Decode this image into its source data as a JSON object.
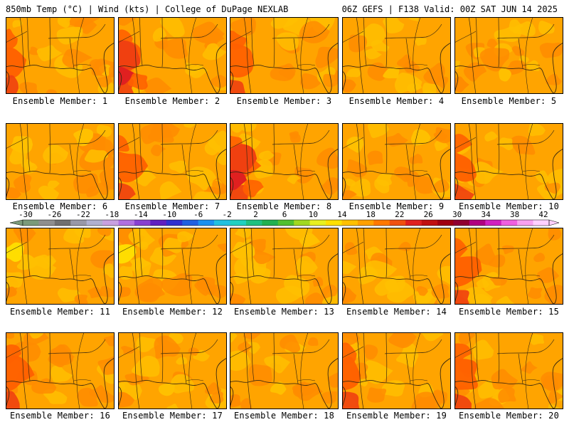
{
  "header": {
    "left": "850mb Temp (°C) | Wind (kts) | College of DuPage NEXLAB",
    "right": "06Z GEFS | F138 Valid: 00Z SAT JUN 14 2025"
  },
  "members": [
    {
      "label": "Ensemble Member: 1",
      "pattern": "west-hot"
    },
    {
      "label": "Ensemble Member: 2",
      "pattern": "west-very-hot"
    },
    {
      "label": "Ensemble Member: 3",
      "pattern": "west-hot"
    },
    {
      "label": "Ensemble Member: 4",
      "pattern": "mild"
    },
    {
      "label": "Ensemble Member: 5",
      "pattern": "mild"
    },
    {
      "label": "Ensemble Member: 6",
      "pattern": "mild-cool"
    },
    {
      "label": "Ensemble Member: 7",
      "pattern": "west-hot"
    },
    {
      "label": "Ensemble Member: 8",
      "pattern": "west-very-hot"
    },
    {
      "label": "Ensemble Member: 9",
      "pattern": "mild-cool"
    },
    {
      "label": "Ensemble Member: 10",
      "pattern": "west-hot"
    },
    {
      "label": "Ensemble Member: 11",
      "pattern": "cool-west"
    },
    {
      "label": "Ensemble Member: 12",
      "pattern": "cool-west"
    },
    {
      "label": "Ensemble Member: 13",
      "pattern": "mild-cool"
    },
    {
      "label": "Ensemble Member: 14",
      "pattern": "mild"
    },
    {
      "label": "Ensemble Member: 15",
      "pattern": "west-hot"
    },
    {
      "label": "Ensemble Member: 16",
      "pattern": "west-hot"
    },
    {
      "label": "Ensemble Member: 17",
      "pattern": "mild"
    },
    {
      "label": "Ensemble Member: 18",
      "pattern": "mild"
    },
    {
      "label": "Ensemble Member: 19",
      "pattern": "west-hot"
    },
    {
      "label": "Ensemble Member: 20",
      "pattern": "west-hot"
    }
  ],
  "colorbar": {
    "labels": [
      "-30",
      "-26",
      "-22",
      "-18",
      "-14",
      "-10",
      "-6",
      "-2",
      "2",
      "6",
      "10",
      "14",
      "18",
      "22",
      "26",
      "30",
      "34",
      "38",
      "42"
    ],
    "colors": [
      "#7a9a7a",
      "#8e8e8e",
      "#707070",
      "#9898a8",
      "#b0b0d0",
      "#c8a0e0",
      "#b070e0",
      "#8840d0",
      "#6020c0",
      "#3030d0",
      "#2060e0",
      "#1a90f0",
      "#20c0e0",
      "#20d0c0",
      "#20c080",
      "#20b050",
      "#50c030",
      "#a0d820",
      "#e8f020",
      "#ffe000",
      "#ffc000",
      "#ffa000",
      "#ff7800",
      "#f05010",
      "#e02020",
      "#c01010",
      "#a00010",
      "#900030",
      "#b00080",
      "#d020c0",
      "#f060e0",
      "#f8a0f0",
      "#ffd0ff"
    ]
  },
  "palette": {
    "base": "#ffa400",
    "cool": "#ffc000",
    "coolest": "#ffe000",
    "warm": "#ff8c00",
    "hot": "#ff6000",
    "hotter": "#f04010",
    "hottest": "#e02020"
  }
}
